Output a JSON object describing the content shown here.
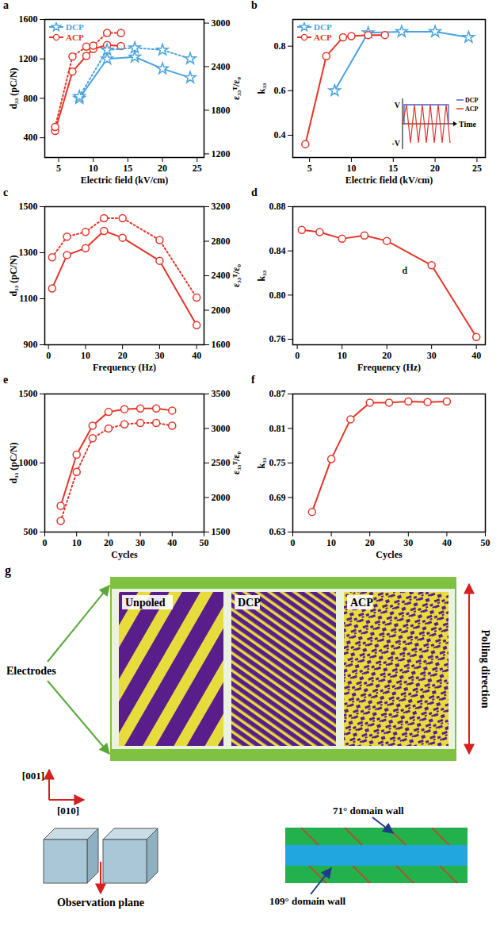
{
  "chart_data": [
    {
      "panel": "a",
      "type": "line",
      "x_label": "Electric field (kV/cm)",
      "y_label": "d₃₃ (pC/N)",
      "y2_label": "ε₃₃ᵀ/ε₀",
      "xlim": [
        3,
        26
      ],
      "xticks": [
        5,
        10,
        15,
        20,
        25
      ],
      "ylim": [
        200,
        1600
      ],
      "yticks": [
        400,
        800,
        1200,
        1600
      ],
      "y2lim": [
        1150,
        3050
      ],
      "y2ticks": [
        1200,
        1800,
        2400,
        3000
      ],
      "legend": "top-left",
      "series": [
        {
          "name": "DCP",
          "color": "#4aa3df",
          "marker": "star",
          "line_style": "solid",
          "x": [
            8,
            12,
            16,
            20,
            24
          ],
          "values": [
            800,
            1200,
            1220,
            1100,
            1010
          ]
        },
        {
          "color": "#4aa3df",
          "marker": "star",
          "line_style": "dotted",
          "axis": "y2",
          "x": [
            8,
            12,
            16,
            20,
            24
          ],
          "values": [
            1990,
            2630,
            2660,
            2630,
            2510
          ]
        },
        {
          "name": "ACP",
          "color": "#e53528",
          "marker": "circle",
          "line_style": "solid",
          "x": [
            4.5,
            7,
            9,
            10,
            12,
            14
          ],
          "values": [
            470,
            1070,
            1230,
            1300,
            1340,
            1330
          ]
        },
        {
          "color": "#e53528",
          "marker": "circle",
          "line_style": "dotted",
          "axis": "y2",
          "x": [
            4.5,
            7,
            9,
            10,
            12,
            14
          ],
          "values": [
            1570,
            2540,
            2675,
            2690,
            2865,
            2865
          ]
        }
      ]
    },
    {
      "panel": "b",
      "type": "line",
      "x_label": "Electric field (kV/cm)",
      "y_label": "k₃₃",
      "xlim": [
        3,
        26
      ],
      "xticks": [
        5,
        10,
        15,
        20,
        25
      ],
      "ylim": [
        0.3,
        0.92
      ],
      "yticks": [
        0.4,
        0.6,
        0.8
      ],
      "legend": "top-left",
      "series": [
        {
          "name": "DCP",
          "color": "#4aa3df",
          "marker": "star",
          "line_style": "solid",
          "x": [
            8,
            12,
            16,
            20,
            24
          ],
          "values": [
            0.6,
            0.86,
            0.865,
            0.865,
            0.84
          ]
        },
        {
          "name": "ACP",
          "color": "#e53528",
          "marker": "circle",
          "line_style": "solid",
          "x": [
            4.5,
            7,
            9,
            10,
            12,
            14
          ],
          "values": [
            0.36,
            0.755,
            0.84,
            0.845,
            0.85,
            0.85
          ]
        }
      ],
      "inset": {
        "type": "waveform",
        "y_labels": [
          "V",
          "-V"
        ],
        "x_label": "Time",
        "series": [
          {
            "name": "DCP",
            "color": "#4a5fd0"
          },
          {
            "name": "ACP",
            "color": "#e53528"
          }
        ]
      }
    },
    {
      "panel": "c",
      "type": "line",
      "x_label": "Frequency (Hz)",
      "y_label": "d₃₃ (pC/N)",
      "y2_label": "ε₃₃ᵀ/ε₀",
      "xlim": [
        -1,
        42
      ],
      "xticks": [
        0,
        10,
        20,
        30,
        40
      ],
      "ylim": [
        900,
        1500
      ],
      "yticks": [
        900,
        1100,
        1300,
        1500
      ],
      "y2lim": [
        1600,
        3200
      ],
      "y2ticks": [
        1600,
        2000,
        2400,
        2800,
        3200
      ],
      "series": [
        {
          "color": "#e53528",
          "marker": "circle",
          "line_style": "solid",
          "x": [
            1,
            5,
            10,
            15,
            20,
            30,
            40
          ],
          "values": [
            1145,
            1290,
            1320,
            1395,
            1365,
            1265,
            985
          ]
        },
        {
          "color": "#e53528",
          "marker": "circle",
          "line_style": "dotted",
          "axis": "y2",
          "x": [
            1,
            5,
            10,
            15,
            20,
            30,
            40
          ],
          "values": [
            2613,
            2853,
            2907,
            3067,
            3067,
            2813,
            2147
          ]
        }
      ]
    },
    {
      "panel": "d",
      "type": "line",
      "x_label": "Frequency (Hz)",
      "y_label": "k₃₃",
      "xlim": [
        -1,
        42
      ],
      "xticks": [
        0,
        10,
        20,
        30,
        40
      ],
      "ylim": [
        0.755,
        0.88
      ],
      "yticks": [
        0.76,
        {
          "value": 0.8,
          "label": "0.80"
        },
        0.84,
        0.88
      ],
      "annotations": [
        {
          "text": "d",
          "x": 24,
          "y": 0.822
        }
      ],
      "series": [
        {
          "color": "#e53528",
          "marker": "circle",
          "line_style": "solid",
          "x": [
            1,
            5,
            10,
            15,
            20,
            30,
            40
          ],
          "values": [
            0.859,
            0.857,
            0.851,
            0.854,
            0.849,
            0.827,
            0.762
          ]
        }
      ]
    },
    {
      "panel": "e",
      "type": "line",
      "x_label": "Cycles",
      "y_label": "d₃₃ (pC/N)",
      "y2_label": "ε₃₃ᵀ/ε₀",
      "xlim": [
        0,
        50
      ],
      "xticks": [
        0,
        10,
        20,
        30,
        40,
        50
      ],
      "ylim": [
        500,
        1500
      ],
      "yticks": [
        500,
        1000,
        1500
      ],
      "y2lim": [
        1500,
        3500
      ],
      "y2ticks": [
        1500,
        2000,
        2500,
        3000,
        3500
      ],
      "series": [
        {
          "color": "#e53528",
          "marker": "circle",
          "line_style": "solid",
          "x": [
            5,
            10,
            15,
            20,
            25,
            30,
            35,
            40
          ],
          "values": [
            690,
            1060,
            1270,
            1370,
            1390,
            1395,
            1395,
            1380
          ]
        },
        {
          "color": "#e53528",
          "marker": "circle",
          "line_style": "dotted",
          "axis": "y2",
          "x": [
            5,
            10,
            15,
            20,
            25,
            30,
            35,
            40
          ],
          "values": [
            1660,
            2370,
            2860,
            3000,
            3060,
            3080,
            3080,
            3040
          ]
        }
      ]
    },
    {
      "panel": "f",
      "type": "line",
      "x_label": "Cycles",
      "y_label": "k₃₃",
      "xlim": [
        0,
        50
      ],
      "xticks": [
        0,
        10,
        20,
        30,
        40,
        50
      ],
      "ylim": [
        0.63,
        0.87
      ],
      "yticks": [
        0.63,
        0.69,
        0.75,
        0.81,
        0.87
      ],
      "series": [
        {
          "color": "#e53528",
          "marker": "circle",
          "line_style": "solid",
          "x": [
            5,
            10,
            15,
            20,
            25,
            30,
            35,
            40
          ],
          "values": [
            0.665,
            0.757,
            0.826,
            0.855,
            0.855,
            0.857,
            0.856,
            0.857
          ]
        }
      ]
    }
  ],
  "diagram": {
    "panel": "g",
    "images": [
      "Unpoled",
      "DCP",
      "ACP"
    ],
    "electrodes_label": "Electrodes",
    "poling_label": "Polling direction",
    "axes": [
      "[001]",
      "[010]"
    ],
    "observation_label": "Observation plane",
    "domain_walls": [
      "71° domain wall",
      "109° domain wall"
    ]
  }
}
